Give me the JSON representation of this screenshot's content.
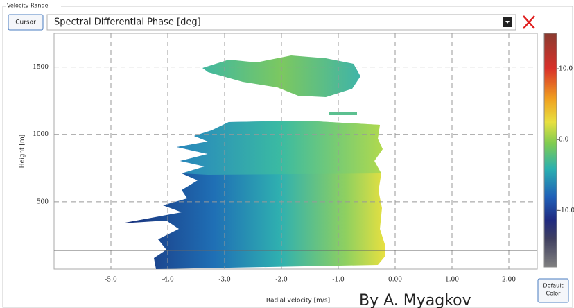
{
  "group_title": "Velocity-Range",
  "cursor_button": "Cursor",
  "product_selector": "Spectral Differential Phase [deg]",
  "default_color_button": [
    "Default",
    "Color"
  ],
  "watermark": "By A. Myagkov",
  "chart_data": {
    "type": "heatmap",
    "x_label": "Radial velocity [m/s]",
    "y_label": "Height [m]",
    "xlim": [
      -6,
      2.5
    ],
    "ylim": [
      0,
      1750
    ],
    "xticks": [
      {
        "value": -5,
        "label": "-5.0"
      },
      {
        "value": -4,
        "label": "-4.0"
      },
      {
        "value": -3,
        "label": "-3.0"
      },
      {
        "value": -2,
        "label": "-2.0"
      },
      {
        "value": -1,
        "label": "-1.0"
      },
      {
        "value": 0,
        "label": "0.00"
      },
      {
        "value": 1,
        "label": "1.00"
      },
      {
        "value": 2,
        "label": "2.00"
      }
    ],
    "yticks": [
      500,
      1000,
      1500
    ],
    "grid": true,
    "cursor_height": 140,
    "colorbar": {
      "lim": [
        -18,
        15
      ],
      "ticks": [
        {
          "value": 10,
          "label": "10.0"
        },
        {
          "value": 0,
          "label": "0.0"
        },
        {
          "value": -10,
          "label": "-10.0"
        }
      ]
    }
  }
}
